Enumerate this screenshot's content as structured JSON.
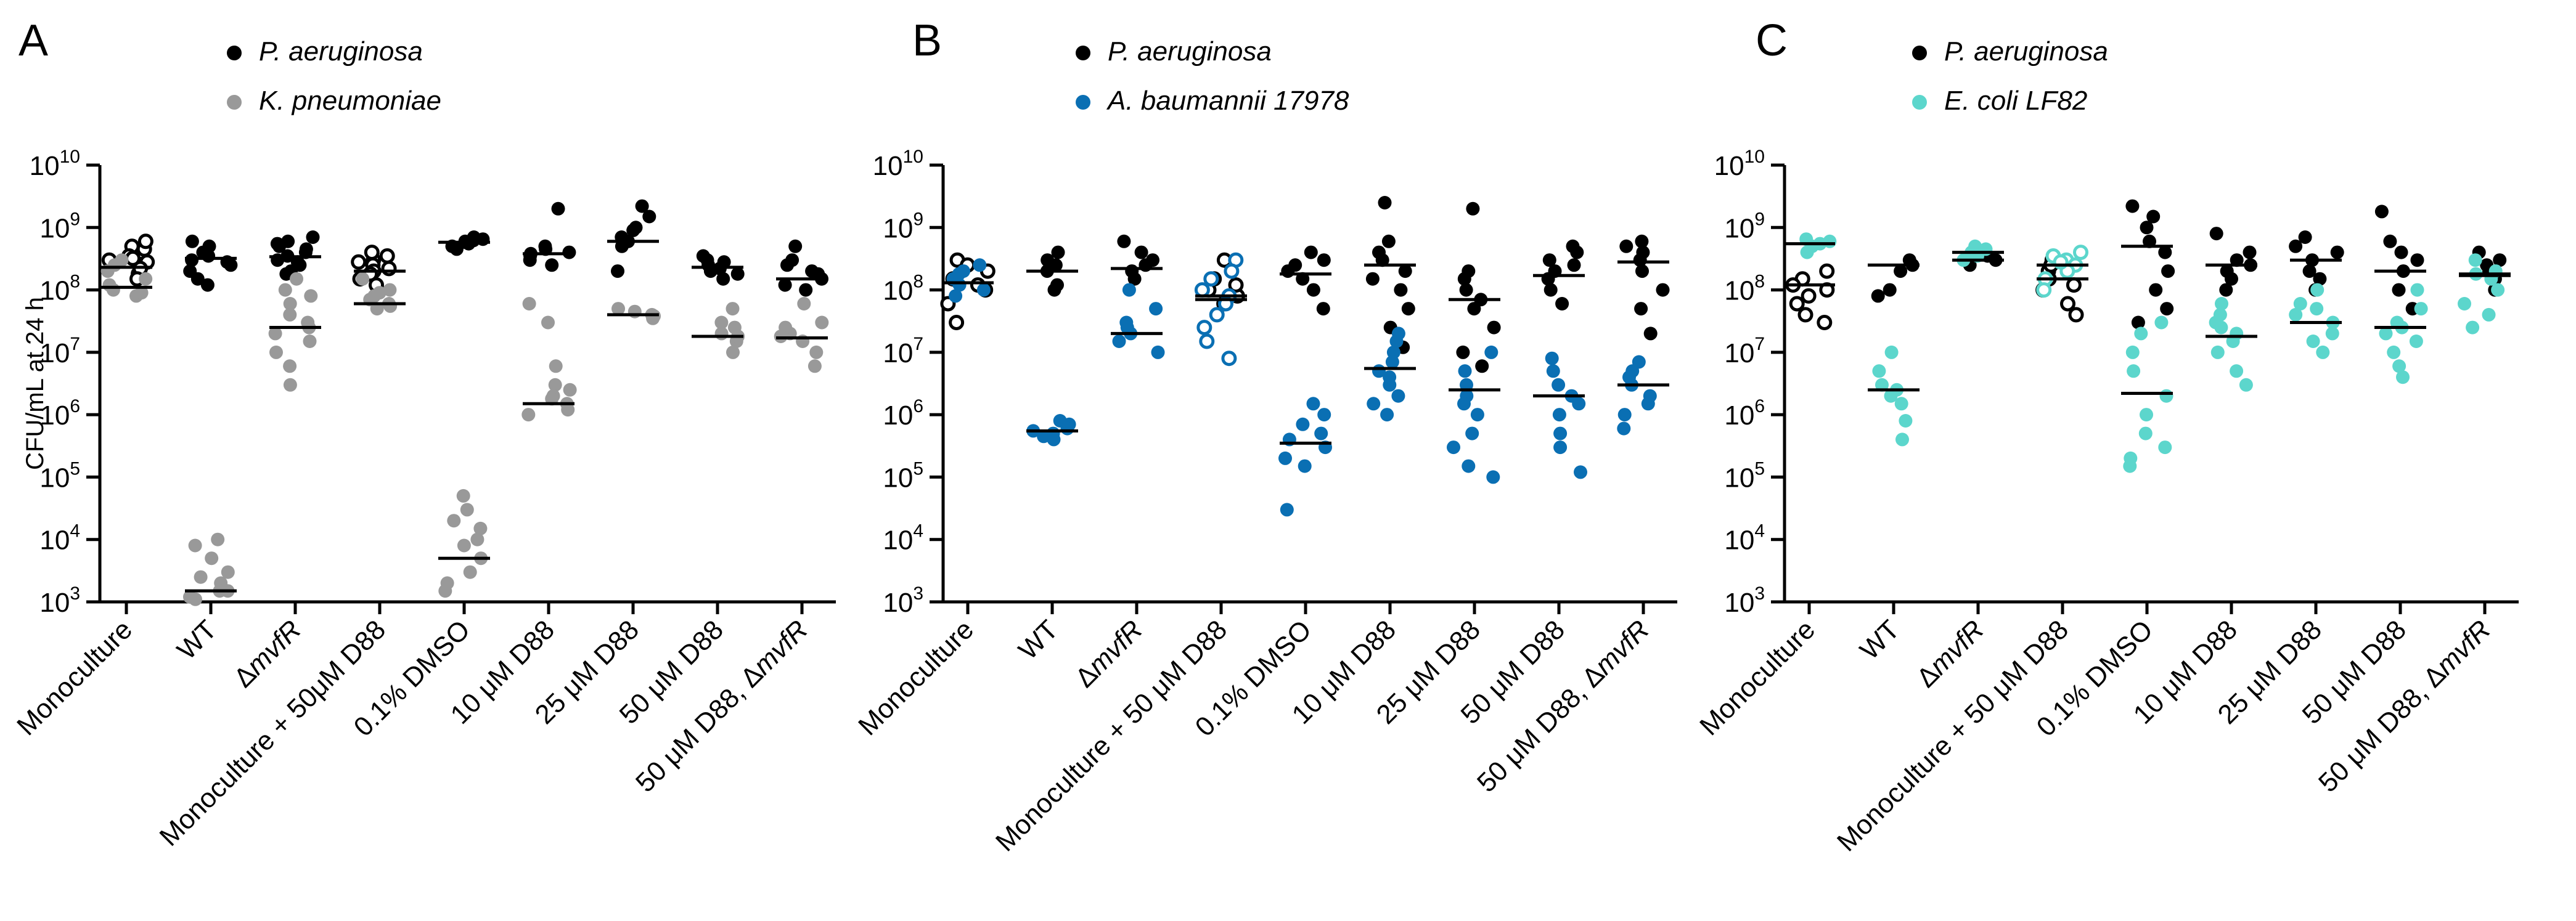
{
  "figure": {
    "panels": [
      "A",
      "B",
      "C"
    ],
    "y_axis_label": "CFU/mL at 24 h"
  },
  "colors": {
    "pa": "#000000",
    "kpn": "#999999",
    "ab": "#0a6fb3",
    "ec": "#5cd6cc"
  },
  "chart_data": [
    {
      "panel": "A",
      "type": "scatter",
      "ylabel": "CFU/mL at 24 h",
      "yscale": "log",
      "ylim": [
        1000,
        10000000000
      ],
      "yticks": [
        "10^3",
        "10^4",
        "10^5",
        "10^6",
        "10^7",
        "10^8",
        "10^9",
        "10^10"
      ],
      "grid": false,
      "legend": "top",
      "categories": [
        "Monoculture",
        "WT",
        "ΔmvfR",
        "Monoculture + 50μM D88",
        "0.1% DMSO",
        "10 μM D88",
        "25 μM D88",
        "50 μM D88",
        "50 μM D88, ΔmvfR"
      ],
      "series": [
        {
          "name": "P. aeruginosa",
          "color": "#000000",
          "hollow": [
            true,
            false,
            false,
            true,
            false,
            false,
            false,
            false,
            false
          ],
          "medians": [
            230000000,
            320000000,
            340000000,
            200000000,
            580000000,
            380000000,
            600000000,
            230000000,
            150000000
          ],
          "points": [
            [
              400000000,
              300000000,
              250000000,
              500000000,
              180000000,
              350000000,
              280000000,
              450000000,
              220000000,
              600000000,
              150000000,
              320000000
            ],
            [
              300000000,
              500000000,
              200000000,
              400000000,
              250000000,
              150000000,
              600000000,
              350000000,
              120000000,
              280000000
            ],
            [
              700000000,
              500000000,
              400000000,
              300000000,
              250000000,
              200000000,
              600000000,
              350000000,
              450000000,
              280000000,
              180000000,
              550000000
            ],
            [
              300000000,
              250000000,
              200000000,
              150000000,
              350000000,
              180000000,
              400000000,
              220000000,
              120000000,
              280000000
            ],
            [
              600000000,
              550000000,
              700000000,
              500000000,
              650000000,
              450000000,
              580000000,
              620000000
            ],
            [
              2000000000,
              500000000,
              400000000,
              350000000,
              300000000,
              450000000,
              250000000,
              380000000
            ],
            [
              2200000000,
              1500000000,
              1000000000,
              700000000,
              500000000,
              600000000,
              200000000,
              900000000
            ],
            [
              300000000,
              250000000,
              200000000,
              180000000,
              350000000,
              150000000,
              280000000,
              220000000
            ],
            [
              500000000,
              300000000,
              200000000,
              150000000,
              120000000,
              250000000,
              100000000,
              180000000
            ]
          ]
        },
        {
          "name": "K. pneumoniae",
          "color": "#999999",
          "hollow": [
            false,
            false,
            false,
            false,
            false,
            false,
            false,
            false,
            false
          ],
          "medians": [
            110000000,
            1500,
            25000000,
            60000000,
            5000,
            1500000,
            40000000,
            18000000,
            17000000
          ],
          "points": [
            [
              200000000,
              150000000,
              100000000,
              80000000,
              120000000,
              300000000,
              90000000,
              250000000
            ],
            [
              10000,
              8000,
              5000,
              3000,
              2000,
              1500,
              1200,
              1100,
              1500,
              2500
            ],
            [
              150000000,
              100000000,
              60000000,
              30000000,
              20000000,
              15000000,
              10000000,
              6000000,
              3000000,
              40000000,
              80000000,
              25000000
            ],
            [
              150000000,
              100000000,
              80000000,
              60000000,
              50000000,
              70000000,
              90000000,
              55000000
            ],
            [
              50000,
              30000,
              20000,
              10000,
              5000,
              3000,
              2000,
              1500,
              8000,
              15000
            ],
            [
              60000000,
              30000000,
              6000000,
              3000000,
              2000000,
              1500000,
              1200000,
              1000000,
              2500000,
              1800000
            ],
            [
              40000000,
              35000000,
              45000000,
              38000000,
              50000000
            ],
            [
              50000000,
              30000000,
              20000000,
              15000000,
              10000000,
              18000000,
              25000000
            ],
            [
              60000000,
              30000000,
              20000000,
              15000000,
              10000000,
              6000000,
              25000000,
              18000000
            ]
          ]
        }
      ]
    },
    {
      "panel": "B",
      "type": "scatter",
      "yscale": "log",
      "ylim": [
        1000,
        10000000000
      ],
      "yticks": [
        "10^3",
        "10^4",
        "10^5",
        "10^6",
        "10^7",
        "10^8",
        "10^9",
        "10^10"
      ],
      "grid": false,
      "legend": "top",
      "categories": [
        "Monoculture",
        "WT",
        "ΔmvfR",
        "Monoculture + 50 μM D88",
        "0.1% DMSO",
        "10 μM D88",
        "25 μM D88",
        "50 μM D88",
        "50 μM D88, ΔmvfR"
      ],
      "series": [
        {
          "name": "P. aeruginosa",
          "color": "#000000",
          "hollow": [
            true,
            false,
            false,
            true,
            false,
            false,
            false,
            false,
            false
          ],
          "medians": [
            130000000,
            200000000,
            220000000,
            70000000,
            180000000,
            250000000,
            70000000,
            170000000,
            280000000
          ],
          "points": [
            [
              300000000,
              200000000,
              150000000,
              100000000,
              60000000,
              30000000,
              250000000,
              120000000
            ],
            [
              400000000,
              300000000,
              200000000,
              120000000,
              100000000,
              250000000
            ],
            [
              600000000,
              400000000,
              300000000,
              200000000,
              150000000,
              250000000
            ],
            [
              300000000,
              150000000,
              100000000,
              80000000,
              60000000,
              120000000
            ],
            [
              400000000,
              300000000,
              200000000,
              150000000,
              100000000,
              50000000,
              250000000
            ],
            [
              2500000000,
              600000000,
              300000000,
              200000000,
              100000000,
              50000000,
              25000000,
              12000000,
              400000000,
              150000000
            ],
            [
              2000000000,
              200000000,
              100000000,
              50000000,
              25000000,
              10000000,
              6000000,
              70000000,
              150000000
            ],
            [
              500000000,
              300000000,
              200000000,
              150000000,
              100000000,
              60000000,
              250000000,
              400000000
            ],
            [
              600000000,
              400000000,
              300000000,
              200000000,
              100000000,
              50000000,
              20000000,
              500000000
            ]
          ]
        },
        {
          "name": "A. baumannii 17978",
          "color": "#0a6fb3",
          "hollow": [
            false,
            false,
            false,
            true,
            false,
            false,
            false,
            false,
            false
          ],
          "medians": [
            130000000,
            550000,
            20000000,
            80000000,
            350000,
            5500000,
            2500000,
            2000000,
            3000000
          ],
          "points": [
            [
              250000000,
              200000000,
              150000000,
              100000000,
              80000000,
              180000000,
              120000000
            ],
            [
              800000,
              700000,
              600000,
              500000,
              450000,
              400000,
              550000
            ],
            [
              100000000,
              50000000,
              30000000,
              20000000,
              15000000,
              10000000,
              25000000
            ],
            [
              300000000,
              200000000,
              150000000,
              100000000,
              80000000,
              60000000,
              40000000,
              25000000,
              15000000,
              8000000
            ],
            [
              1500000,
              1000000,
              700000,
              500000,
              400000,
              300000,
              200000,
              150000,
              30000
            ],
            [
              20000000,
              15000000,
              10000000,
              7000000,
              5000000,
              3000000,
              2000000,
              1500000,
              1000000,
              4000000
            ],
            [
              10000000,
              5000000,
              3000000,
              2000000,
              1000000,
              500000,
              300000,
              150000,
              100000,
              1500000
            ],
            [
              8000000,
              5000000,
              3000000,
              2000000,
              1500000,
              1000000,
              500000,
              300000,
              120000
            ],
            [
              7000000,
              5000000,
              3000000,
              2000000,
              1500000,
              1000000,
              600000,
              4000000
            ]
          ]
        }
      ]
    },
    {
      "panel": "C",
      "type": "scatter",
      "yscale": "log",
      "ylim": [
        1000,
        10000000000
      ],
      "yticks": [
        "10^3",
        "10^4",
        "10^5",
        "10^6",
        "10^7",
        "10^8",
        "10^9",
        "10^10"
      ],
      "grid": false,
      "legend": "top",
      "categories": [
        "Monoculture",
        "WT",
        "ΔmvfR",
        "Monoculture + 50 μM D88",
        "0.1% DMSO",
        "10 μM D88",
        "25 μM D88",
        "50 μM D88",
        "50 μM D88, ΔmvfR"
      ],
      "series": [
        {
          "name": "P. aeruginosa",
          "color": "#000000",
          "hollow": [
            true,
            false,
            false,
            true,
            false,
            false,
            false,
            false,
            false
          ],
          "medians": [
            120000000,
            250000000,
            300000000,
            150000000,
            500000000,
            250000000,
            300000000,
            200000000,
            170000000
          ],
          "points": [
            [
              200000000,
              150000000,
              100000000,
              60000000,
              40000000,
              30000000,
              120000000,
              80000000
            ],
            [
              300000000,
              200000000,
              100000000,
              80000000,
              250000000
            ],
            [
              400000000,
              300000000,
              250000000,
              350000000
            ],
            [
              300000000,
              200000000,
              150000000,
              100000000,
              60000000,
              40000000,
              120000000,
              250000000
            ],
            [
              2200000000,
              1500000000,
              1000000000,
              600000000,
              400000000,
              200000000,
              100000000,
              50000000,
              30000000
            ],
            [
              800000000,
              400000000,
              300000000,
              200000000,
              150000000,
              100000000,
              250000000
            ],
            [
              700000000,
              500000000,
              300000000,
              200000000,
              150000000,
              100000000,
              400000000
            ],
            [
              1800000000,
              600000000,
              300000000,
              200000000,
              100000000,
              50000000,
              400000000
            ],
            [
              400000000,
              300000000,
              200000000,
              150000000,
              100000000,
              250000000
            ]
          ]
        },
        {
          "name": "E. coli LF82",
          "color": "#5cd6cc",
          "hollow": [
            false,
            false,
            false,
            true,
            false,
            false,
            false,
            false,
            false
          ],
          "medians": [
            550000000,
            2500000,
            400000000,
            250000000,
            2200000,
            18000000,
            30000000,
            25000000,
            180000000
          ],
          "points": [
            [
              600000000,
              500000000,
              550000000,
              400000000,
              650000000
            ],
            [
              10000000,
              5000000,
              3000000,
              2000000,
              1500000,
              800000,
              400000,
              2500000
            ],
            [
              500000000,
              400000000,
              350000000,
              300000000,
              450000000
            ],
            [
              400000000,
              300000000,
              250000000,
              200000000,
              150000000,
              100000000,
              350000000,
              280000000
            ],
            [
              30000000,
              20000000,
              10000000,
              5000000,
              2000000,
              1000000,
              500000,
              300000,
              200000,
              150000
            ],
            [
              60000000,
              40000000,
              30000000,
              20000000,
              15000000,
              10000000,
              5000000,
              3000000,
              25000000
            ],
            [
              100000000,
              60000000,
              40000000,
              30000000,
              20000000,
              15000000,
              10000000,
              50000000
            ],
            [
              100000000,
              50000000,
              30000000,
              20000000,
              15000000,
              10000000,
              6000000,
              4000000,
              25000000
            ],
            [
              300000000,
              200000000,
              150000000,
              100000000,
              60000000,
              40000000,
              25000000,
              180000000
            ]
          ]
        }
      ]
    }
  ]
}
